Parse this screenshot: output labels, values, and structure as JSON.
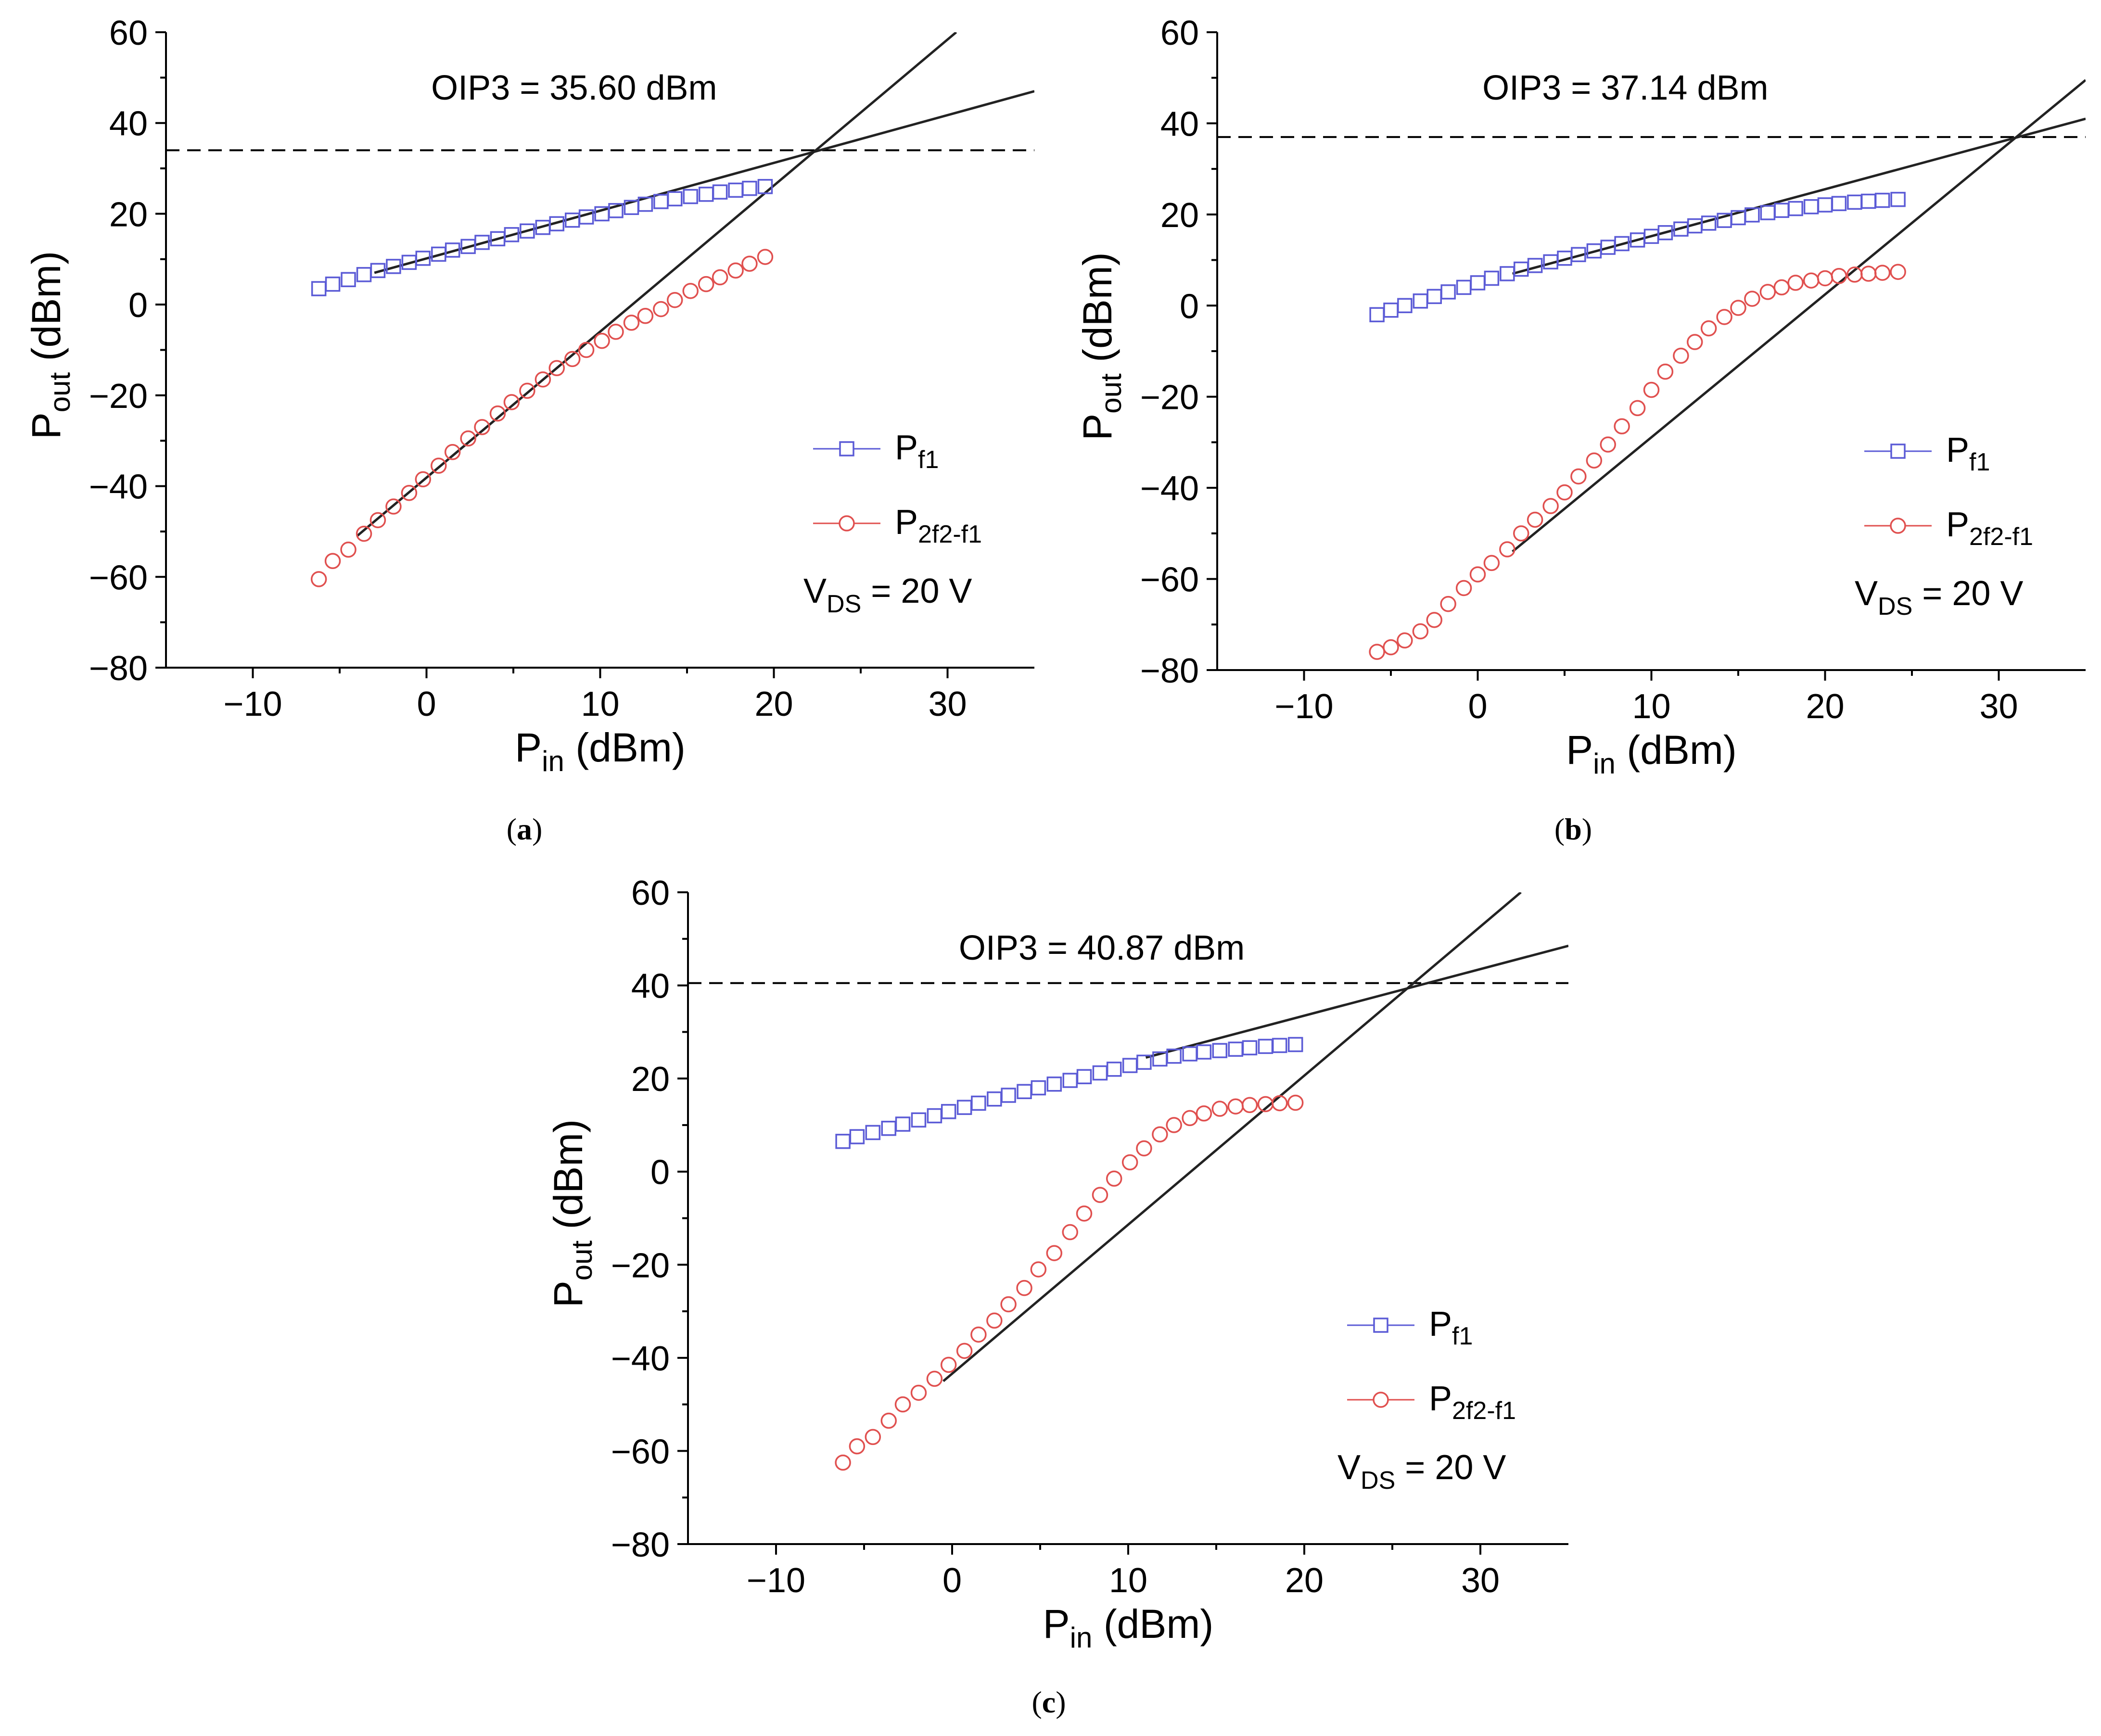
{
  "chart_data": [
    {
      "type": "scatter",
      "caption_letter": "a",
      "annotation": "OIP3 = 35.60 dBm",
      "condition": "V_DS = 20 V",
      "xlabel": {
        "main": "P",
        "sub": "in",
        "unit": "(dBm)"
      },
      "ylabel": {
        "main": "P",
        "sub": "out",
        "unit": "(dBm)"
      },
      "xlim": [
        -15,
        35
      ],
      "ylim": [
        -80,
        60
      ],
      "xticks": [
        -10,
        0,
        10,
        20,
        30
      ],
      "yticks": [
        -80,
        -60,
        -40,
        -20,
        0,
        20,
        40,
        60
      ],
      "legend_position": "bottom-right",
      "dashed_level": 34,
      "fit_lines": [
        {
          "x": [
            -3,
            35
          ],
          "y": [
            7,
            47
          ]
        },
        {
          "x": [
            -4,
            30.5
          ],
          "y": [
            -51,
            60
          ]
        }
      ],
      "series": [
        {
          "name_main": "P",
          "name_sub": "f1",
          "marker": "square",
          "color": "#5b5bd6",
          "x": [
            -6.2,
            -5.4,
            -4.5,
            -3.6,
            -2.8,
            -1.9,
            -1.0,
            -0.2,
            0.7,
            1.5,
            2.4,
            3.2,
            4.1,
            4.9,
            5.8,
            6.7,
            7.5,
            8.4,
            9.2,
            10.1,
            10.9,
            11.8,
            12.6,
            13.5,
            14.3,
            15.2,
            16.1,
            16.9,
            17.8,
            18.6,
            19.5
          ],
          "y": [
            3.5,
            4.5,
            5.5,
            6.6,
            7.5,
            8.4,
            9.3,
            10.2,
            11.1,
            12.0,
            12.8,
            13.7,
            14.5,
            15.4,
            16.2,
            17.0,
            17.8,
            18.6,
            19.3,
            20.0,
            20.7,
            21.4,
            22.1,
            22.7,
            23.3,
            23.8,
            24.3,
            24.8,
            25.2,
            25.6,
            26.0
          ]
        },
        {
          "name_main": "P",
          "name_sub": "2f2-f1",
          "marker": "circle",
          "color": "#e0504f",
          "x": [
            -6.2,
            -5.4,
            -4.5,
            -3.6,
            -2.8,
            -1.9,
            -1.0,
            -0.2,
            0.7,
            1.5,
            2.4,
            3.2,
            4.1,
            4.9,
            5.8,
            6.7,
            7.5,
            8.4,
            9.2,
            10.1,
            10.9,
            11.8,
            12.6,
            13.5,
            14.3,
            15.2,
            16.1,
            16.9,
            17.8,
            18.6,
            19.5
          ],
          "y": [
            -60.5,
            -56.5,
            -54,
            -50.5,
            -47.5,
            -44.5,
            -41.5,
            -38.5,
            -35.5,
            -32.5,
            -29.5,
            -27,
            -24,
            -21.5,
            -19,
            -16.5,
            -14,
            -12,
            -10,
            -8,
            -6,
            -4,
            -2.5,
            -1,
            1,
            3,
            4.5,
            6,
            7.5,
            9,
            10.5
          ]
        }
      ]
    },
    {
      "type": "scatter",
      "caption_letter": "b",
      "annotation": "OIP3 = 37.14 dBm",
      "condition": "V_DS = 20 V",
      "xlabel": {
        "main": "P",
        "sub": "in",
        "unit": "(dBm)"
      },
      "ylabel": {
        "main": "P",
        "sub": "out",
        "unit": "(dBm)"
      },
      "xlim": [
        -15,
        35
      ],
      "ylim": [
        -80,
        60
      ],
      "xticks": [
        -10,
        0,
        10,
        20,
        30
      ],
      "yticks": [
        -80,
        -60,
        -40,
        -20,
        0,
        20,
        40,
        60
      ],
      "legend_position": "bottom-right",
      "dashed_level": 37,
      "fit_lines": [
        {
          "x": [
            2,
            35
          ],
          "y": [
            7,
            41
          ]
        },
        {
          "x": [
            2,
            35
          ],
          "y": [
            -54,
            49.5
          ]
        }
      ],
      "series": [
        {
          "name_main": "P",
          "name_sub": "f1",
          "marker": "square",
          "color": "#5b5bd6",
          "x": [
            -5.8,
            -5.0,
            -4.2,
            -3.3,
            -2.5,
            -1.7,
            -0.8,
            0,
            0.8,
            1.7,
            2.5,
            3.3,
            4.2,
            5.0,
            5.8,
            6.7,
            7.5,
            8.3,
            9.2,
            10.0,
            10.8,
            11.7,
            12.5,
            13.3,
            14.2,
            15.0,
            15.8,
            16.7,
            17.5,
            18.3,
            19.2,
            20.0,
            20.8,
            21.7,
            22.5,
            23.3,
            24.2
          ],
          "y": [
            -2,
            -1,
            0,
            1,
            2,
            3,
            4,
            5,
            6,
            7,
            8,
            8.8,
            9.6,
            10.4,
            11.2,
            12,
            12.8,
            13.6,
            14.4,
            15.2,
            16,
            16.8,
            17.5,
            18.1,
            18.7,
            19.3,
            19.9,
            20.4,
            20.9,
            21.3,
            21.7,
            22.1,
            22.4,
            22.7,
            22.9,
            23.1,
            23.3
          ]
        },
        {
          "name_main": "P",
          "name_sub": "2f2-f1",
          "marker": "circle",
          "color": "#e0504f",
          "x": [
            -5.8,
            -5.0,
            -4.2,
            -3.3,
            -2.5,
            -1.7,
            -0.8,
            0,
            0.8,
            1.7,
            2.5,
            3.3,
            4.2,
            5.0,
            5.8,
            6.7,
            7.5,
            8.3,
            9.2,
            10.0,
            10.8,
            11.7,
            12.5,
            13.3,
            14.2,
            15.0,
            15.8,
            16.7,
            17.5,
            18.3,
            19.2,
            20.0,
            20.8,
            21.7,
            22.5,
            23.3,
            24.2
          ],
          "y": [
            -76,
            -75,
            -73.5,
            -71.5,
            -69,
            -65.5,
            -62,
            -59,
            -56.5,
            -53.5,
            -50,
            -47,
            -44,
            -41,
            -37.5,
            -34,
            -30.5,
            -26.5,
            -22.5,
            -18.5,
            -14.5,
            -11,
            -8,
            -5,
            -2.5,
            -0.5,
            1.5,
            3,
            4,
            5,
            5.5,
            6,
            6.5,
            6.8,
            7,
            7.2,
            7.4
          ]
        }
      ]
    },
    {
      "type": "scatter",
      "caption_letter": "c",
      "annotation": "OIP3 = 40.87 dBm",
      "condition": "V_DS = 20 V",
      "xlabel": {
        "main": "P",
        "sub": "in",
        "unit": "(dBm)"
      },
      "ylabel": {
        "main": "P",
        "sub": "out",
        "unit": "(dBm)"
      },
      "xlim": [
        -15,
        35
      ],
      "ylim": [
        -80,
        60
      ],
      "xticks": [
        -10,
        0,
        10,
        20,
        30
      ],
      "yticks": [
        -80,
        -60,
        -40,
        -20,
        0,
        20,
        40,
        60
      ],
      "legend_position": "bottom-right",
      "dashed_level": 40.5,
      "fit_lines": [
        {
          "x": [
            11,
            35
          ],
          "y": [
            24.5,
            48.5
          ]
        },
        {
          "x": [
            -0.5,
            32.3
          ],
          "y": [
            -45,
            60
          ]
        }
      ],
      "series": [
        {
          "name_main": "P",
          "name_sub": "f1",
          "marker": "square",
          "color": "#5b5bd6",
          "x": [
            -6.2,
            -5.4,
            -4.5,
            -3.6,
            -2.8,
            -1.9,
            -1.0,
            -0.2,
            0.7,
            1.5,
            2.4,
            3.2,
            4.1,
            4.9,
            5.8,
            6.7,
            7.5,
            8.4,
            9.2,
            10.1,
            10.9,
            11.8,
            12.6,
            13.5,
            14.3,
            15.2,
            16.1,
            16.9,
            17.8,
            18.6,
            19.5
          ],
          "y": [
            6.5,
            7.5,
            8.4,
            9.3,
            10.2,
            11.1,
            12,
            12.9,
            13.8,
            14.7,
            15.6,
            16.4,
            17.2,
            18,
            18.8,
            19.6,
            20.4,
            21.2,
            22,
            22.8,
            23.5,
            24.2,
            24.8,
            25.3,
            25.7,
            26.0,
            26.3,
            26.6,
            26.9,
            27.1,
            27.3
          ]
        },
        {
          "name_main": "P",
          "name_sub": "2f2-f1",
          "marker": "circle",
          "color": "#e0504f",
          "x": [
            -6.2,
            -5.4,
            -4.5,
            -3.6,
            -2.8,
            -1.9,
            -1.0,
            -0.2,
            0.7,
            1.5,
            2.4,
            3.2,
            4.1,
            4.9,
            5.8,
            6.7,
            7.5,
            8.4,
            9.2,
            10.1,
            10.9,
            11.8,
            12.6,
            13.5,
            14.3,
            15.2,
            16.1,
            16.9,
            17.8,
            18.6,
            19.5
          ],
          "y": [
            -62.5,
            -59,
            -57,
            -53.5,
            -50,
            -47.5,
            -44.5,
            -41.5,
            -38.5,
            -35,
            -32,
            -28.5,
            -25,
            -21,
            -17.5,
            -13,
            -9,
            -5,
            -1.5,
            2,
            5,
            8,
            10,
            11.5,
            12.5,
            13.5,
            14,
            14.3,
            14.5,
            14.7,
            14.8
          ]
        }
      ]
    }
  ]
}
